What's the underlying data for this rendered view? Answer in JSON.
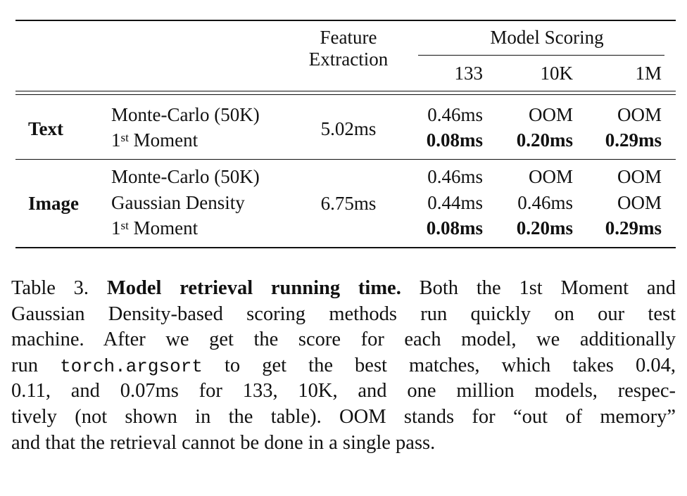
{
  "table": {
    "header": {
      "feature_line1": "Feature",
      "feature_line2": "Extraction",
      "model_scoring": "Model Scoring",
      "col_133": "133",
      "col_10k": "10K",
      "col_1m": "1M"
    },
    "text_group": {
      "label": "Text",
      "feature_time": "5.02ms",
      "rows": [
        {
          "method": "Monte-Carlo (50K)",
          "v133": "0.46ms",
          "v10k": "OOM",
          "v1m": "OOM"
        },
        {
          "method_prefix": "1",
          "method_sup": "st",
          "method_suffix": " Moment",
          "v133": "0.08ms",
          "v10k": "0.20ms",
          "v1m": "0.29ms"
        }
      ]
    },
    "image_group": {
      "label": "Image",
      "feature_time": "6.75ms",
      "rows": [
        {
          "method": "Monte-Carlo (50K)",
          "v133": "0.46ms",
          "v10k": "OOM",
          "v1m": "OOM"
        },
        {
          "method": "Gaussian Density",
          "v133": "0.44ms",
          "v10k": "0.46ms",
          "v1m": "OOM"
        },
        {
          "method_prefix": "1",
          "method_sup": "st",
          "method_suffix": " Moment",
          "v133": "0.08ms",
          "v10k": "0.20ms",
          "v1m": "0.29ms"
        }
      ]
    }
  },
  "caption": {
    "lines": [
      {
        "a": "Table 3. ",
        "b": "Model retrieval running time.",
        "c": " Both the 1st Moment and"
      },
      {
        "text": "Gaussian Density-based scoring methods run quickly on our test"
      },
      {
        "text": "machine.  After we get the score for each model, we additionally"
      },
      {
        "a": "run ",
        "code": "torch.argsort",
        "c": " to get the best matches, which takes 0.04,"
      },
      {
        "text": "0.11, and 0.07ms for 133, 10K, and one million models, respec-"
      },
      {
        "text": "tively (not shown in the table). OOM stands for “out of memory”"
      },
      {
        "text": "and that the retrieval cannot be done in a single pass."
      }
    ]
  }
}
